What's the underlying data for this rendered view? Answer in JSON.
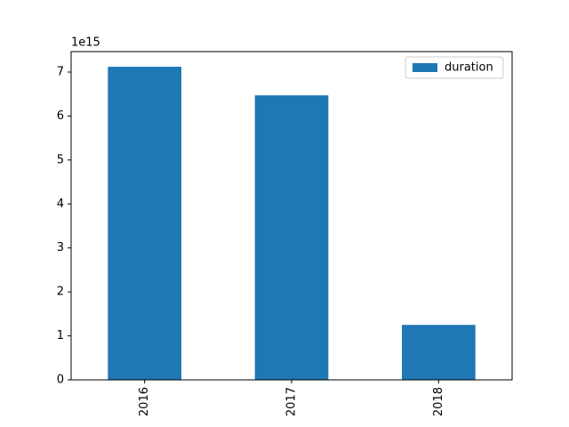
{
  "chart_data": {
    "type": "bar",
    "categories": [
      "2016",
      "2017",
      "2018"
    ],
    "series": [
      {
        "name": "duration",
        "color": "#1f77b4",
        "values": [
          7.12,
          6.47,
          1.25
        ]
      }
    ],
    "ylim": [
      0,
      7.465
    ],
    "yticks": [
      0,
      1,
      2,
      3,
      4,
      5,
      6,
      7
    ],
    "y_offset_label": "1e15",
    "legend": "upper right"
  }
}
